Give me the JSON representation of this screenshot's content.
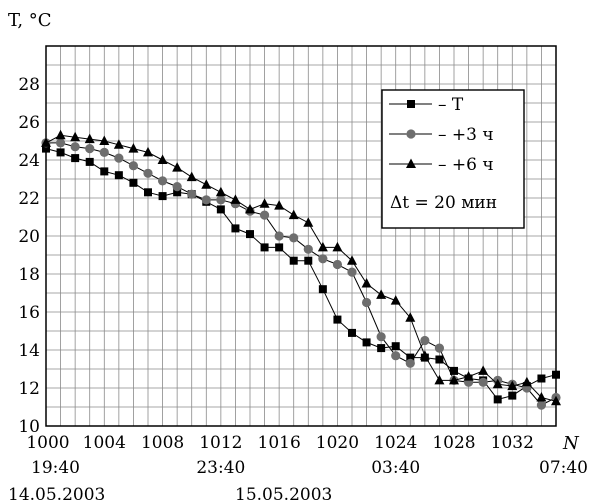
{
  "chart_data": {
    "type": "line",
    "ylabel": "T, °C",
    "xlabel": "N",
    "xlim": [
      1000,
      1035
    ],
    "ylim": [
      10,
      30
    ],
    "x_ticks": [
      1000,
      1004,
      1008,
      1012,
      1016,
      1020,
      1024,
      1028,
      1032
    ],
    "y_ticks": [
      10,
      12,
      14,
      16,
      18,
      20,
      22,
      24,
      26,
      28
    ],
    "x_time_labels": [
      {
        "x": 1000,
        "label": "19:40"
      },
      {
        "x": 1012,
        "label": "23:40"
      },
      {
        "x": 1024,
        "label": "03:40"
      },
      {
        "x": 1035,
        "label": "07:40"
      }
    ],
    "x_date_labels": [
      {
        "x": 1000,
        "label": "14.05.2003"
      },
      {
        "x": 1014,
        "label": "15.05.2003"
      }
    ],
    "grid": true,
    "legend": {
      "placement": "top-right",
      "entries": [
        "– T",
        "– +3 ч",
        "– +6 ч"
      ],
      "note": "Δt = 20 мин"
    },
    "series": [
      {
        "name": "T",
        "marker": "square",
        "color": "#000000",
        "x": [
          1000,
          1001,
          1002,
          1003,
          1004,
          1005,
          1006,
          1007,
          1008,
          1009,
          1010,
          1011,
          1012,
          1013,
          1014,
          1015,
          1016,
          1017,
          1018,
          1019,
          1020,
          1021,
          1022,
          1023,
          1024,
          1025,
          1026,
          1027,
          1028,
          1029,
          1030,
          1031,
          1032,
          1033,
          1034,
          1035
        ],
        "values": [
          24.6,
          24.4,
          24.1,
          23.9,
          23.4,
          23.2,
          22.8,
          22.3,
          22.1,
          22.3,
          22.2,
          21.8,
          21.4,
          20.4,
          20.1,
          19.4,
          19.4,
          18.7,
          18.7,
          17.2,
          15.6,
          14.9,
          14.4,
          14.1,
          14.2,
          13.6,
          13.6,
          13.5,
          12.9,
          12.5,
          12.4,
          11.4,
          11.6,
          12.1,
          12.5,
          12.7
        ]
      },
      {
        "name": "+3 ч",
        "marker": "circle",
        "color": "#6e6e6e",
        "x": [
          1000,
          1001,
          1002,
          1003,
          1004,
          1005,
          1006,
          1007,
          1008,
          1009,
          1010,
          1011,
          1012,
          1013,
          1014,
          1015,
          1016,
          1017,
          1018,
          1019,
          1020,
          1021,
          1022,
          1023,
          1024,
          1025,
          1026,
          1027,
          1028,
          1029,
          1030,
          1031,
          1032,
          1033,
          1034,
          1035
        ],
        "values": [
          24.9,
          24.9,
          24.7,
          24.6,
          24.4,
          24.1,
          23.7,
          23.3,
          22.9,
          22.6,
          22.2,
          21.9,
          21.9,
          21.7,
          21.3,
          21.1,
          20.0,
          19.9,
          19.3,
          18.8,
          18.5,
          18.1,
          16.5,
          14.7,
          13.7,
          13.3,
          14.5,
          14.1,
          12.4,
          12.3,
          12.3,
          12.4,
          12.2,
          12.0,
          11.1,
          11.5
        ]
      },
      {
        "name": "+6 ч",
        "marker": "triangle",
        "color": "#000000",
        "x": [
          1000,
          1001,
          1002,
          1003,
          1004,
          1005,
          1006,
          1007,
          1008,
          1009,
          1010,
          1011,
          1012,
          1013,
          1014,
          1015,
          1016,
          1017,
          1018,
          1019,
          1020,
          1021,
          1022,
          1023,
          1024,
          1025,
          1026,
          1027,
          1028,
          1029,
          1030,
          1031,
          1032,
          1033,
          1034,
          1035
        ],
        "values": [
          24.9,
          25.3,
          25.2,
          25.1,
          25.0,
          24.8,
          24.6,
          24.4,
          24.0,
          23.6,
          23.1,
          22.7,
          22.3,
          21.9,
          21.4,
          21.7,
          21.6,
          21.1,
          20.7,
          19.4,
          19.4,
          18.7,
          17.5,
          16.9,
          16.6,
          15.7,
          13.7,
          12.4,
          12.4,
          12.6,
          12.9,
          12.2,
          12.1,
          12.3,
          11.5,
          11.3
        ]
      }
    ]
  }
}
